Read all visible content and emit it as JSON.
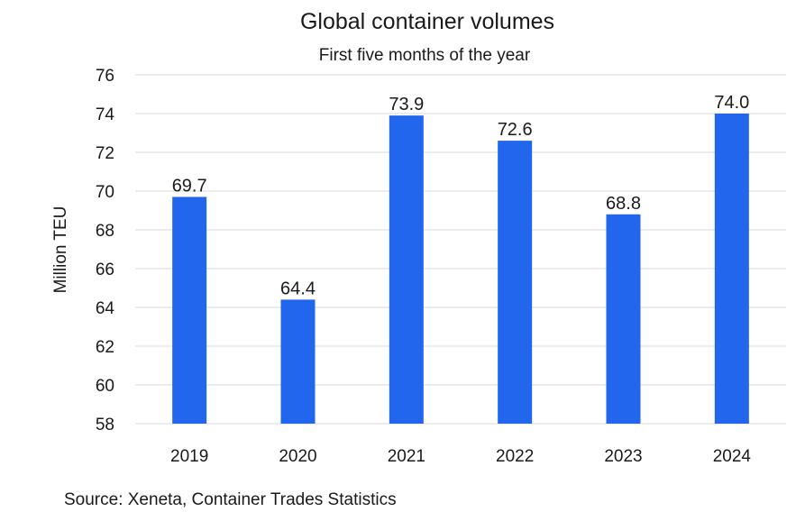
{
  "chart_data": {
    "type": "bar",
    "title": "Global container volumes",
    "subtitle": "First five months of the year",
    "categories": [
      "2019",
      "2020",
      "2021",
      "2022",
      "2023",
      "2024"
    ],
    "values": [
      69.7,
      64.4,
      73.9,
      72.6,
      68.8,
      74.0
    ],
    "data_labels": [
      "69.7",
      "64.4",
      "73.9",
      "72.6",
      "68.8",
      "74.0"
    ],
    "ylabel": "Million TEU",
    "xlabel": "",
    "ylim": [
      58,
      76
    ],
    "yticks": [
      58,
      60,
      62,
      64,
      66,
      68,
      70,
      72,
      74,
      76
    ],
    "grid": true,
    "bar_color": "#2266ee"
  },
  "source": "Source: Xeneta, Container Trades Statistics"
}
